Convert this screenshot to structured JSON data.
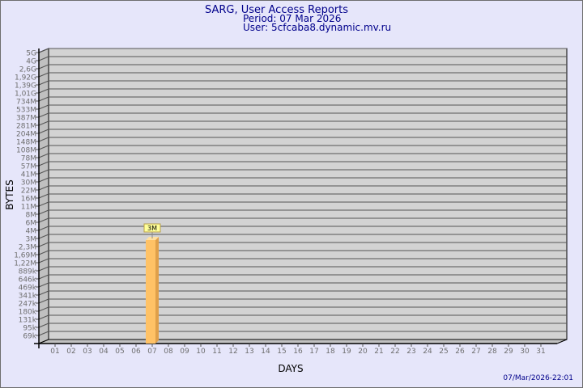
{
  "chart_data": {
    "type": "bar",
    "title": "SARG, User Access Reports",
    "subtitle_period": "Period: 07 Mar 2026",
    "subtitle_user": "User: 5cfcaba8.dynamic.mv.ru",
    "xlabel": "DAYS",
    "ylabel": "BYTES",
    "timestamp": "07/Mar/2026-22:01",
    "y_scale": "log",
    "grid": true,
    "categories": [
      "01",
      "02",
      "03",
      "04",
      "05",
      "06",
      "07",
      "08",
      "09",
      "10",
      "11",
      "12",
      "13",
      "14",
      "15",
      "16",
      "17",
      "18",
      "19",
      "20",
      "21",
      "22",
      "23",
      "24",
      "25",
      "26",
      "27",
      "28",
      "29",
      "30",
      "31"
    ],
    "y_tick_labels": [
      "5G",
      "4G",
      "2,6G",
      "1,92G",
      "1,39G",
      "1,01G",
      "734M",
      "533M",
      "387M",
      "281M",
      "204M",
      "148M",
      "108M",
      "78M",
      "57M",
      "41M",
      "30M",
      "22M",
      "16M",
      "11M",
      "8M",
      "6M",
      "4M",
      "3M",
      "2,3M",
      "1,69M",
      "1,22M",
      "889k",
      "646k",
      "469k",
      "341k",
      "247k",
      "180k",
      "131k",
      "95k",
      "69k"
    ],
    "series": [
      {
        "values": [
          null,
          null,
          null,
          null,
          null,
          null,
          "3M",
          null,
          null,
          null,
          null,
          null,
          null,
          null,
          null,
          null,
          null,
          null,
          null,
          null,
          null,
          null,
          null,
          null,
          null,
          null,
          null,
          null,
          null,
          null,
          null
        ]
      }
    ],
    "colors": {
      "bar_front": "#ffc266",
      "bar_side": "#e0a04a",
      "bar_top": "#ffe0a0",
      "wall": "#d3d3d3",
      "side_wall": "#c0c0c0",
      "text": "#00008b",
      "tick_text": "#6e6e6e",
      "label_bg": "#ffff99"
    }
  }
}
